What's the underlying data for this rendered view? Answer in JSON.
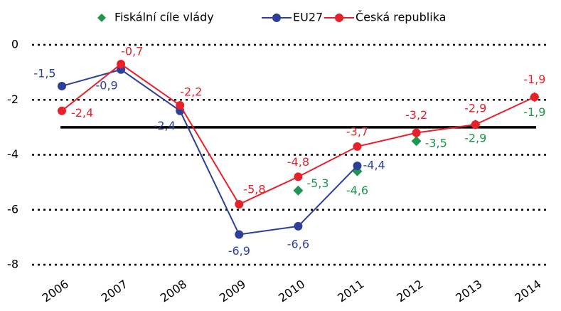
{
  "chart_data": {
    "type": "line",
    "categories": [
      "2006",
      "2007",
      "2008",
      "2009",
      "2010",
      "2011",
      "2012",
      "2013",
      "2014"
    ],
    "series": [
      {
        "name": "Fiskální cíle vlády",
        "color": "#1e9650",
        "marker": "diamond",
        "line": false,
        "values": [
          null,
          null,
          null,
          null,
          -5.3,
          -4.6,
          -3.5,
          -2.9,
          -1.9
        ],
        "value_labels": [
          null,
          null,
          null,
          null,
          "-5,3",
          "-4,6",
          "-3,5",
          "-2,9",
          "-1,9"
        ]
      },
      {
        "name": "EU27",
        "color": "#2e3f9a",
        "marker": "circle",
        "line": true,
        "values": [
          -1.5,
          -0.9,
          -2.4,
          -6.9,
          -6.6,
          -4.4,
          null,
          null,
          null
        ],
        "value_labels": [
          "-1,5",
          "-0,9",
          "-2,4",
          "-6,9",
          "-6,6",
          "-4,4",
          null,
          null,
          null
        ]
      },
      {
        "name": "Česká republika",
        "color": "#e8202a",
        "marker": "circle",
        "line": true,
        "values": [
          -2.4,
          -0.7,
          -2.2,
          -5.8,
          -4.8,
          -3.7,
          -3.2,
          -2.9,
          -1.9
        ],
        "value_labels": [
          "-2,4",
          "-0,7",
          "-2,2",
          "-5,8",
          "-4,8",
          "-3,7",
          "-3,2",
          "-2,9",
          "-1,9"
        ]
      }
    ],
    "reference_line": -3,
    "ylim": [
      -8,
      0
    ],
    "yticks": [
      0,
      -2,
      -4,
      -6,
      -8
    ],
    "grid": true,
    "legend": "top"
  }
}
